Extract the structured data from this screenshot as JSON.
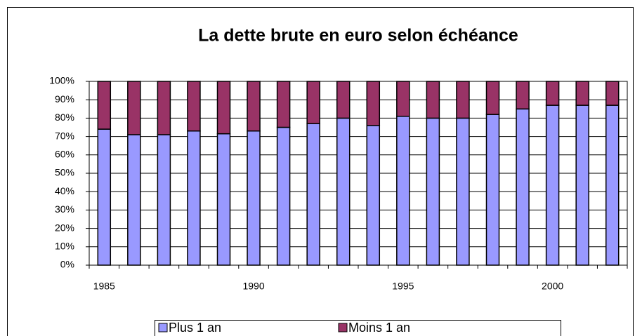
{
  "chart_data": {
    "type": "stacked_bar_100",
    "title": "La dette brute en euro selon échéance",
    "categories": [
      "1985",
      null,
      null,
      null,
      null,
      "1990",
      null,
      null,
      null,
      null,
      "1995",
      null,
      null,
      null,
      null,
      "2000",
      null,
      null
    ],
    "series": [
      {
        "name": "Plus 1 an",
        "color": "#9999ff",
        "values": [
          74,
          71,
          71,
          73,
          71.5,
          73,
          75,
          77,
          80,
          76,
          81,
          80,
          80,
          82,
          85,
          87,
          87,
          87
        ]
      },
      {
        "name": "Moins 1 an",
        "color": "#993366",
        "values": [
          26,
          29,
          29,
          27,
          28.5,
          27,
          25,
          23,
          20,
          24,
          19,
          20,
          20,
          18,
          15,
          13,
          13,
          13
        ]
      }
    ],
    "ylim": [
      0,
      100
    ],
    "yticks": [
      {
        "value": 0,
        "label": "0%"
      },
      {
        "value": 10,
        "label": "10%"
      },
      {
        "value": 20,
        "label": "20%"
      },
      {
        "value": 30,
        "label": "30%"
      },
      {
        "value": 40,
        "label": "40%"
      },
      {
        "value": 50,
        "label": "50%"
      },
      {
        "value": 60,
        "label": "60%"
      },
      {
        "value": 70,
        "label": "70%"
      },
      {
        "value": 80,
        "label": "80%"
      },
      {
        "value": 90,
        "label": "90%"
      },
      {
        "value": 100,
        "label": "100%"
      }
    ],
    "grid": true,
    "legend": "bottom"
  }
}
